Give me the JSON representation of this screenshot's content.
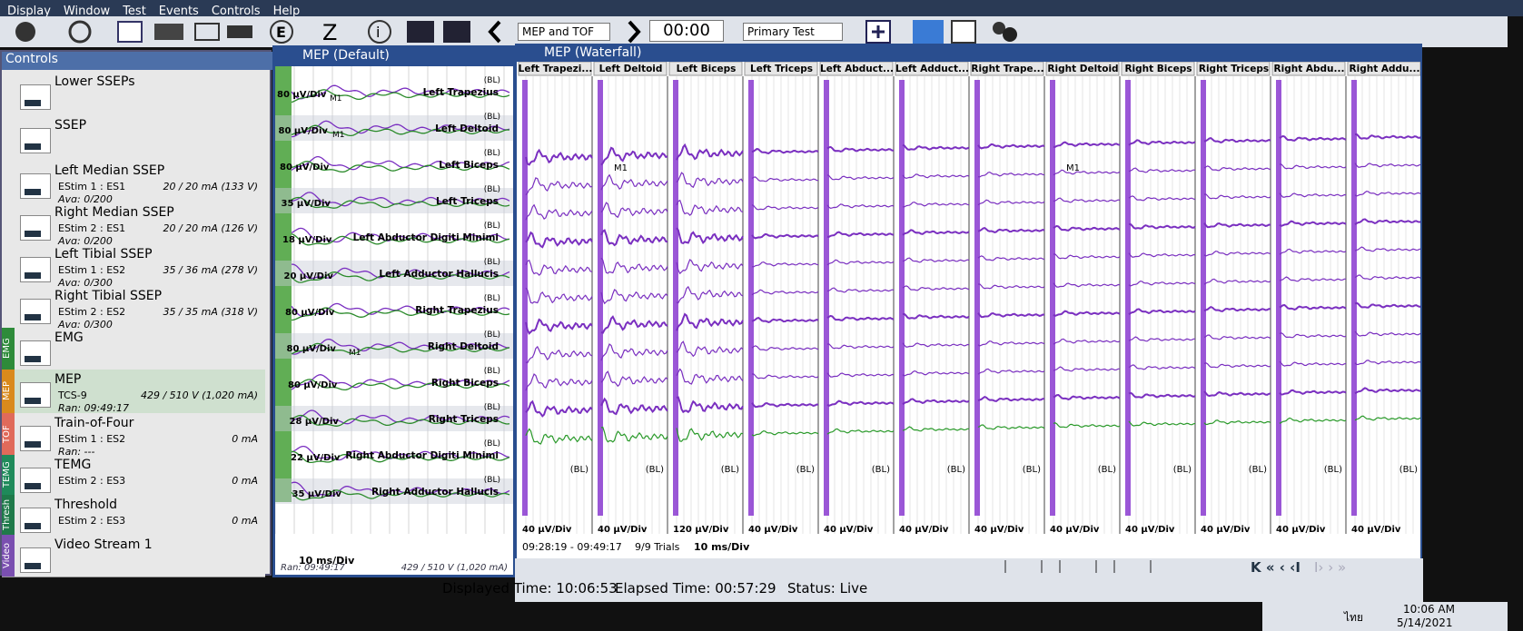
{
  "menu": [
    "Display",
    "Window",
    "Test",
    "Events",
    "Controls",
    "Help"
  ],
  "toolbar": {
    "protocol": "MEP and TOF",
    "time": "00:00",
    "test": "Primary Test"
  },
  "controls": {
    "title": "Controls",
    "items": [
      {
        "name": "Lower SSEPs"
      },
      {
        "name": "SSEP"
      },
      {
        "name": "Left Median SSEP",
        "stim": "EStim 1 : ES1",
        "setting": "20 / 20 mA (133 V)",
        "status": "Avg: 0/200"
      },
      {
        "name": "Right Median SSEP",
        "stim": "EStim 2 : ES1",
        "setting": "20 / 20 mA (126 V)",
        "status": "Avg: 0/200"
      },
      {
        "name": "Left Tibial SSEP",
        "stim": "EStim 1 : ES2",
        "setting": "35 / 36 mA (278 V)",
        "status": "Avg: 0/300"
      },
      {
        "name": "Right Tibial SSEP",
        "stim": "EStim 2 : ES2",
        "setting": "35 / 35 mA (318 V)",
        "status": "Avg: 0/300"
      },
      {
        "name": "EMG",
        "tab": "EMG"
      },
      {
        "name": "MEP",
        "tab": "MEP",
        "stim": "TCS-9",
        "setting": "429 / 510 V (1,020 mA)",
        "status": "Ran: 09:49:17"
      },
      {
        "name": "Train-of-Four",
        "tab": "TOF",
        "stim": "EStim 1 : ES2",
        "setting": "0 mA",
        "status": "Ran: ---"
      },
      {
        "name": "TEMG",
        "tab": "TEMG",
        "stim": "EStim 2 : ES3",
        "setting": "0 mA"
      },
      {
        "name": "Threshold",
        "tab": "Thresh",
        "stim": "EStim 2 : ES3",
        "setting": "0 mA"
      },
      {
        "name": "Video Stream 1",
        "tab": "Video"
      }
    ]
  },
  "mep_default": {
    "title": "MEP (Default)",
    "bl_label": "(BL)",
    "marker": "M1",
    "timebase": "10 ms/Div",
    "footer_left": "Ran: 09:49:17",
    "footer_right": "429 / 510 V (1,020 mA)",
    "channels": [
      {
        "label": "Left Trapezius",
        "scale": "80 µV/Div"
      },
      {
        "label": "Left Deltoid",
        "scale": "80 µV/Div"
      },
      {
        "label": "Left Biceps",
        "scale": "80 µV/Div"
      },
      {
        "label": "Left Triceps",
        "scale": "35 µV/Div"
      },
      {
        "label": "Left Abductor Digiti Minimi",
        "scale": "18 µV/Div"
      },
      {
        "label": "Left Adductor Hallucis",
        "scale": "20 µV/Div"
      },
      {
        "label": "Right Trapezius",
        "scale": "80 µV/Div"
      },
      {
        "label": "Right Deltoid",
        "scale": "80 µV/Div"
      },
      {
        "label": "Right Biceps",
        "scale": "80 µV/Div"
      },
      {
        "label": "Right Triceps",
        "scale": "28 µV/Div"
      },
      {
        "label": "Right Abductor Digiti Minimi",
        "scale": "22 µV/Div"
      },
      {
        "label": "Right Adductor Hallucis",
        "scale": "35 µV/Div"
      }
    ]
  },
  "waterfall": {
    "title": "MEP (Waterfall)",
    "bl_label": "(BL)",
    "marker": "M1",
    "range": "09:28:19 - 09:49:17",
    "trials": "9/9 Trials",
    "timebase": "10 ms/Div",
    "columns": [
      {
        "label": "Left Trapezi...",
        "scale": "40 µV/Div"
      },
      {
        "label": "Left Deltoid",
        "scale": "40 µV/Div"
      },
      {
        "label": "Left Biceps",
        "scale": "120 µV/Div"
      },
      {
        "label": "Left Triceps",
        "scale": "40 µV/Div"
      },
      {
        "label": "Left Abduct...",
        "scale": "40 µV/Div"
      },
      {
        "label": "Left Adduct...",
        "scale": "40 µV/Div"
      },
      {
        "label": "Right Trape...",
        "scale": "40 µV/Div"
      },
      {
        "label": "Right Deltoid",
        "scale": "40 µV/Div"
      },
      {
        "label": "Right Biceps",
        "scale": "40 µV/Div"
      },
      {
        "label": "Right Triceps",
        "scale": "40 µV/Div"
      },
      {
        "label": "Right Abdu...",
        "scale": "40 µV/Div"
      },
      {
        "label": "Right Addu...",
        "scale": "40 µV/Div"
      }
    ]
  },
  "status": {
    "displayed": "Displayed Time: 10:06:53",
    "elapsed": "Elapsed Time: 00:57:29",
    "state": "Status: Live"
  },
  "taskbar": {
    "lang": "ไทย",
    "time": "10:06 AM",
    "date": "5/14/2021"
  }
}
